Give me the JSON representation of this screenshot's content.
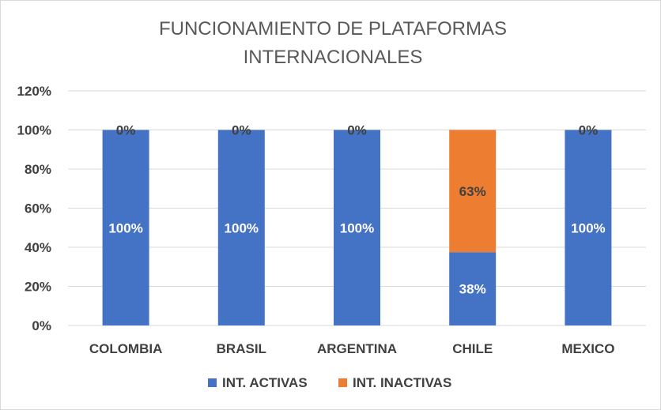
{
  "chart_data": {
    "type": "bar",
    "stacked": true,
    "title_lines": [
      "FUNCIONAMIENTO DE PLATAFORMAS",
      "INTERNACIONALES"
    ],
    "categories": [
      "COLOMBIA",
      "BRASIL",
      "ARGENTINA",
      "CHILE",
      "MEXICO"
    ],
    "series": [
      {
        "name": "INT. ACTIVAS",
        "color": "#4472C4",
        "values": [
          1.0,
          1.0,
          1.0,
          0.375,
          1.0
        ],
        "labels": [
          "100%",
          "100%",
          "100%",
          "38%",
          "100%"
        ],
        "label_color": "#ffffff"
      },
      {
        "name": "INT. INACTIVAS",
        "color": "#ED7D31",
        "values": [
          0.0,
          0.0,
          0.0,
          0.625,
          0.0
        ],
        "labels": [
          "0%",
          "0%",
          "0%",
          "63%",
          "0%"
        ],
        "label_color": "#404040"
      }
    ],
    "ylim": [
      0,
      1.2
    ],
    "yticks": [
      "0%",
      "20%",
      "40%",
      "60%",
      "80%",
      "100%",
      "120%"
    ],
    "grid": true,
    "legend": "bottom"
  }
}
